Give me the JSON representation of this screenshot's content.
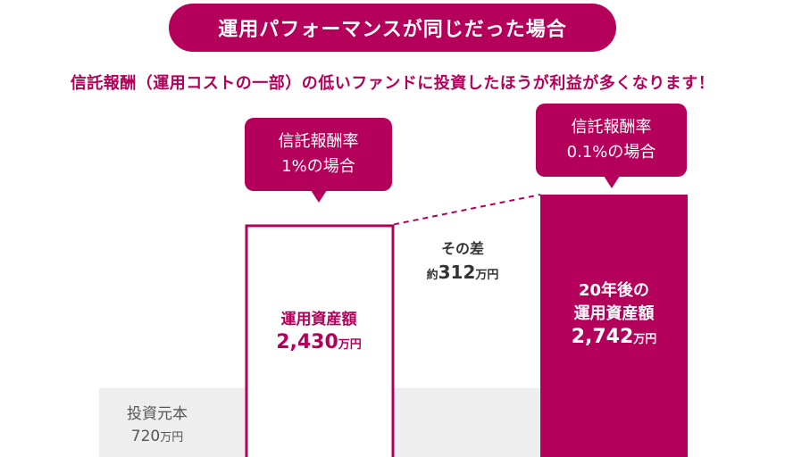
{
  "header": {
    "title": "運用パフォーマンスが同じだった場合",
    "subtitle": "信託報酬（運用コストの一部）の低いファンドに投資したほうが利益が多くなります！"
  },
  "labels": {
    "fee_1pct_line1": "信託報酬率",
    "fee_1pct_line2": "1%の場合",
    "fee_01pct_line1": "信託報酬率",
    "fee_01pct_line2": "0.1%の場合",
    "principal_line1": "投資元本",
    "principal_value": "720",
    "box1_line1": "運用資産額",
    "box1_value": "2,430",
    "box2_line1": "20年後の",
    "box2_line2": "運用資産額",
    "box2_value": "2,742",
    "diff_line1": "その差",
    "diff_prefix": "約",
    "diff_value": "312",
    "unit": "万円"
  },
  "colors": {
    "accent": "#b5005b",
    "principal_band": "#eeeeee",
    "white": "#ffffff"
  },
  "chart_data": {
    "type": "bar",
    "title": "運用パフォーマンスが同じだった場合",
    "categories": [
      "投資元本",
      "信託報酬率 1%の場合",
      "信託報酬率 0.1%の場合"
    ],
    "values": [
      720,
      2430,
      2742
    ],
    "unit": "万円",
    "difference": 312,
    "ylim": [
      0,
      2742
    ],
    "grid": false
  }
}
